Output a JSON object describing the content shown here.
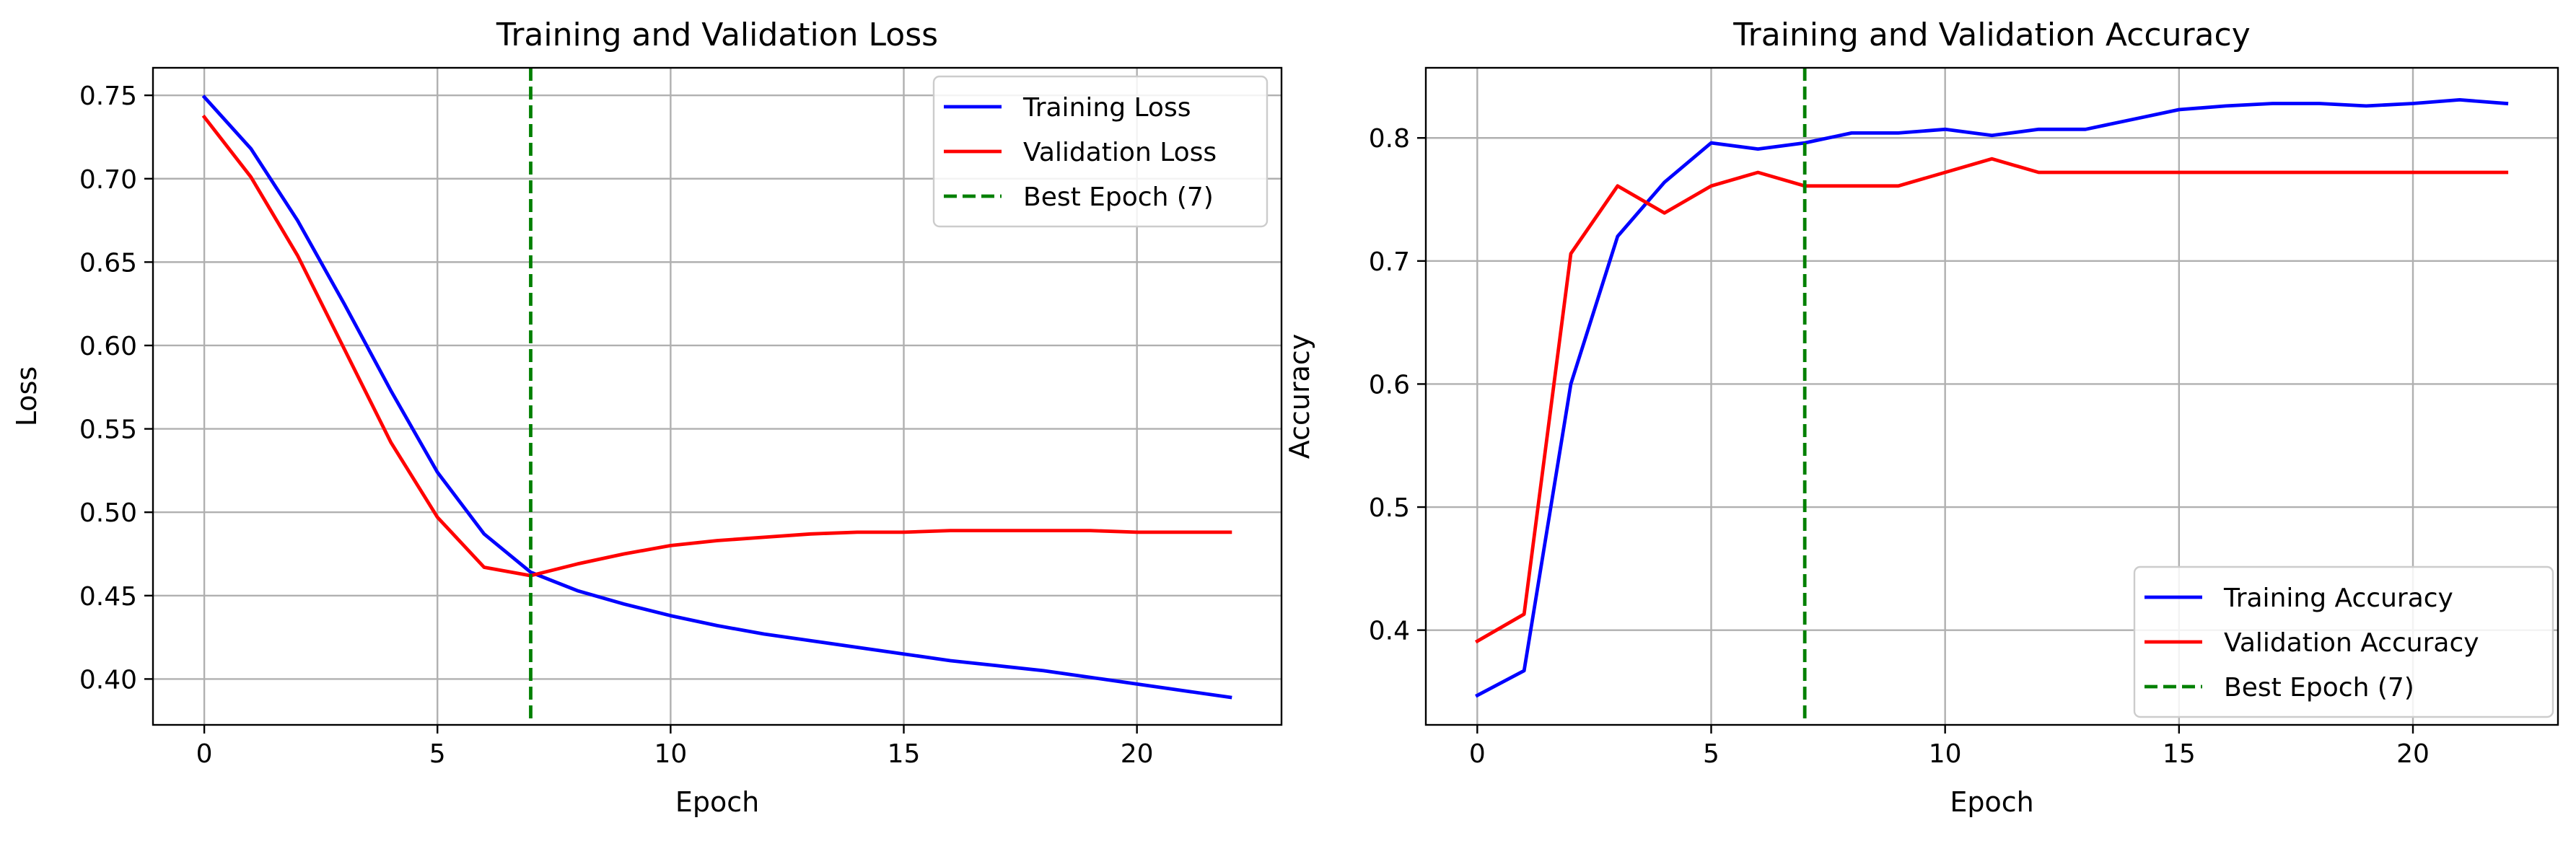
{
  "colors": {
    "training": "#0000ff",
    "validation": "#ff0000",
    "best_epoch": "#008000",
    "grid": "#b0b0b0",
    "axes": "#000000"
  },
  "chart_data": [
    {
      "type": "line",
      "title": "Training and Validation Loss",
      "xlabel": "Epoch",
      "ylabel": "Loss",
      "xlim": [
        -1.1,
        23.1
      ],
      "ylim": [
        0.3725,
        0.7665
      ],
      "xticks": [
        0,
        5,
        10,
        15,
        20
      ],
      "xtick_labels": [
        "0",
        "5",
        "10",
        "15",
        "20"
      ],
      "yticks": [
        0.4,
        0.45,
        0.5,
        0.55,
        0.6,
        0.65,
        0.7,
        0.75
      ],
      "ytick_labels": [
        "0.40",
        "0.45",
        "0.50",
        "0.55",
        "0.60",
        "0.65",
        "0.70",
        "0.75"
      ],
      "grid": true,
      "legend_position": "top-right",
      "x": [
        0,
        1,
        2,
        3,
        4,
        5,
        6,
        7,
        8,
        9,
        10,
        11,
        12,
        13,
        14,
        15,
        16,
        17,
        18,
        19,
        20,
        21,
        22
      ],
      "series": [
        {
          "name": "Training Loss",
          "color": "#0000ff",
          "values": [
            0.749,
            0.718,
            0.675,
            0.625,
            0.573,
            0.524,
            0.487,
            0.464,
            0.453,
            0.445,
            0.438,
            0.432,
            0.427,
            0.423,
            0.419,
            0.415,
            0.411,
            0.408,
            0.405,
            0.401,
            0.397,
            0.393,
            0.389
          ]
        },
        {
          "name": "Validation Loss",
          "color": "#ff0000",
          "values": [
            0.737,
            0.701,
            0.654,
            0.598,
            0.542,
            0.497,
            0.467,
            0.462,
            0.469,
            0.475,
            0.48,
            0.483,
            0.485,
            0.487,
            0.488,
            0.488,
            0.489,
            0.489,
            0.489,
            0.489,
            0.488,
            0.488,
            0.488
          ]
        }
      ],
      "vline": {
        "x": 7,
        "name": "Best Epoch (7)",
        "color": "#008000",
        "style": "dashed"
      }
    },
    {
      "type": "line",
      "title": "Training and Validation Accuracy",
      "xlabel": "Epoch",
      "ylabel": "Accuracy",
      "xlim": [
        -1.1,
        23.1
      ],
      "ylim": [
        0.323,
        0.857
      ],
      "xticks": [
        0,
        5,
        10,
        15,
        20
      ],
      "xtick_labels": [
        "0",
        "5",
        "10",
        "15",
        "20"
      ],
      "yticks": [
        0.4,
        0.5,
        0.6,
        0.7,
        0.8
      ],
      "ytick_labels": [
        "0.4",
        "0.5",
        "0.6",
        "0.7",
        "0.8"
      ],
      "grid": true,
      "legend_position": "bottom-right",
      "x": [
        0,
        1,
        2,
        3,
        4,
        5,
        6,
        7,
        8,
        9,
        10,
        11,
        12,
        13,
        14,
        15,
        16,
        17,
        18,
        19,
        20,
        21,
        22
      ],
      "series": [
        {
          "name": "Training Accuracy",
          "color": "#0000ff",
          "values": [
            0.347,
            0.367,
            0.6,
            0.72,
            0.764,
            0.796,
            0.791,
            0.796,
            0.804,
            0.804,
            0.807,
            0.802,
            0.807,
            0.807,
            0.815,
            0.823,
            0.826,
            0.828,
            0.828,
            0.826,
            0.828,
            0.831,
            0.828
          ]
        },
        {
          "name": "Validation Accuracy",
          "color": "#ff0000",
          "values": [
            0.391,
            0.413,
            0.706,
            0.761,
            0.739,
            0.761,
            0.772,
            0.761,
            0.761,
            0.761,
            0.772,
            0.783,
            0.772,
            0.772,
            0.772,
            0.772,
            0.772,
            0.772,
            0.772,
            0.772,
            0.772,
            0.772,
            0.772
          ]
        }
      ],
      "vline": {
        "x": 7,
        "name": "Best Epoch (7)",
        "color": "#008000",
        "style": "dashed"
      }
    }
  ]
}
